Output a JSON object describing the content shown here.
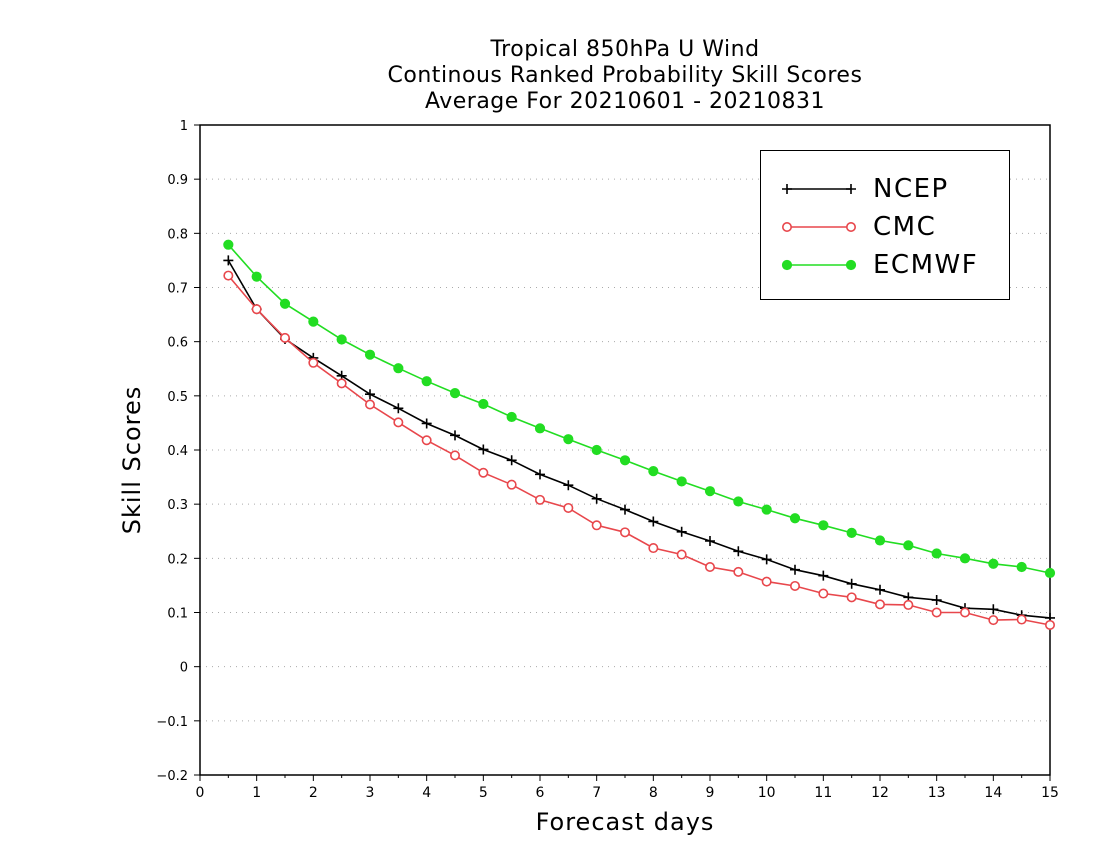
{
  "chart_data": {
    "type": "line",
    "title": [
      "Tropical 850hPa U Wind",
      "Continous Ranked Probability Skill Scores",
      "Average For 20210601 - 20210831"
    ],
    "xlabel": "Forecast days",
    "ylabel": "Skill Scores",
    "xlim": [
      0,
      15
    ],
    "ylim": [
      -0.2,
      1
    ],
    "xticks": [
      "0",
      "1",
      "2",
      "3",
      "4",
      "5",
      "6",
      "7",
      "8",
      "9",
      "10",
      "11",
      "12",
      "13",
      "14",
      "15"
    ],
    "yticks": [
      "−0.2",
      "−0.1",
      "0",
      "0.1",
      "0.2",
      "0.3",
      "0.4",
      "0.5",
      "0.6",
      "0.7",
      "0.8",
      "0.9",
      "1"
    ],
    "ytick_values": [
      -0.2,
      -0.1,
      0,
      0.1,
      0.2,
      0.3,
      0.4,
      0.5,
      0.6,
      0.7,
      0.8,
      0.9,
      1
    ],
    "grid": "horizontal dotted",
    "legend_position": "top-right",
    "x": [
      0.5,
      1,
      1.5,
      2,
      2.5,
      3,
      3.5,
      4,
      4.5,
      5,
      5.5,
      6,
      6.5,
      7,
      7.5,
      8,
      8.5,
      9,
      9.5,
      10,
      10.5,
      11,
      11.5,
      12,
      12.5,
      13,
      13.5,
      14,
      14.5,
      15
    ],
    "series": [
      {
        "name": "NCEP",
        "color": "#000000",
        "marker": "plus",
        "values": [
          0.75,
          0.66,
          0.605,
          0.57,
          0.537,
          0.503,
          0.477,
          0.449,
          0.427,
          0.401,
          0.381,
          0.355,
          0.335,
          0.31,
          0.29,
          0.268,
          0.249,
          0.232,
          0.213,
          0.198,
          0.179,
          0.168,
          0.153,
          0.142,
          0.128,
          0.123,
          0.108,
          0.106,
          0.095,
          0.09
        ]
      },
      {
        "name": "CMC",
        "color": "#e8474c",
        "marker": "open-circle",
        "values": [
          0.722,
          0.66,
          0.607,
          0.561,
          0.523,
          0.484,
          0.451,
          0.418,
          0.39,
          0.358,
          0.336,
          0.308,
          0.293,
          0.261,
          0.248,
          0.219,
          0.207,
          0.184,
          0.175,
          0.157,
          0.149,
          0.135,
          0.128,
          0.115,
          0.114,
          0.1,
          0.1,
          0.086,
          0.087,
          0.077
        ]
      },
      {
        "name": "ECMWF",
        "color": "#22dd22",
        "marker": "filled-circle",
        "values": [
          0.779,
          0.72,
          0.67,
          0.637,
          0.604,
          0.576,
          0.551,
          0.527,
          0.505,
          0.485,
          0.461,
          0.44,
          0.42,
          0.4,
          0.381,
          0.361,
          0.342,
          0.324,
          0.305,
          0.29,
          0.274,
          0.261,
          0.247,
          0.233,
          0.224,
          0.209,
          0.2,
          0.19,
          0.184,
          0.173
        ]
      }
    ]
  }
}
